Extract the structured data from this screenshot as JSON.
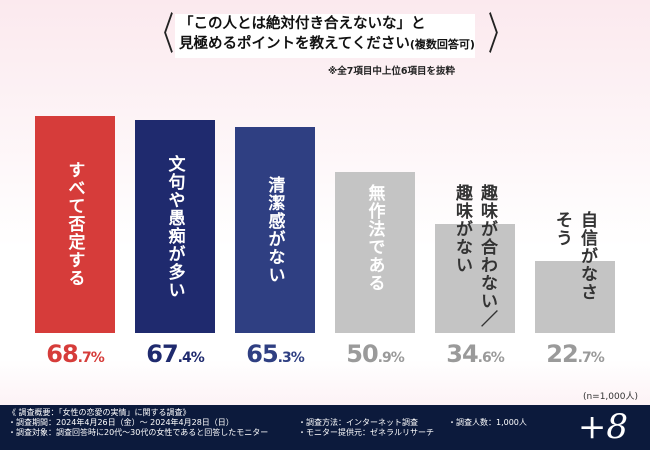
{
  "header": {
    "title_line1": "「この人とは絶対付き合えないな」と",
    "title_line2": "見極めるポイントを教えてください",
    "title_suffix": "(複数回答可)",
    "note": "※全7項目中上位6項目を抜粋"
  },
  "chart_data": {
    "type": "bar",
    "title": "「この人とは絶対付き合えないな」と見極めるポイントを教えてください(複数回答可)",
    "categories": [
      "すべて否定する",
      "文句や愚痴が多い",
      "清潔感がない",
      "無作法である",
      "趣味が合わない／趣味がない",
      "自信がなさそう"
    ],
    "values": [
      68.7,
      67.4,
      65.3,
      50.9,
      34.6,
      22.7
    ],
    "unit": "%",
    "ylim": [
      0,
      70
    ],
    "bar_colors": [
      "#d63c3a",
      "#1f2a6e",
      "#2f3f82",
      "#c4c4c4",
      "#c4c4c4",
      "#c4c4c4"
    ],
    "value_colors": [
      "#d63c3a",
      "#1f2a6e",
      "#2f3f82",
      "#9a9a9a",
      "#9a9a9a",
      "#9a9a9a"
    ],
    "label_colors": [
      "#ffffff",
      "#ffffff",
      "#ffffff",
      "#ffffff",
      "#ffffff",
      "#ffffff"
    ]
  },
  "sample": "(n=1,000人)",
  "footer": {
    "l1": "《 調査概要：「女性の恋愛の実情」に関する調査》",
    "l2": "・調査期間：2024年4月26日（金）～ 2024年4月28日（日）",
    "l3": "・調査対象：調査回答時に20代～30代の女性であると回答したモニター",
    "m1": "・調査方法：インターネット調査",
    "m2": "・モニター提供元：ゼネラルリサーチ",
    "r1": "・調査人数：1,000人",
    "logo": "+8"
  }
}
